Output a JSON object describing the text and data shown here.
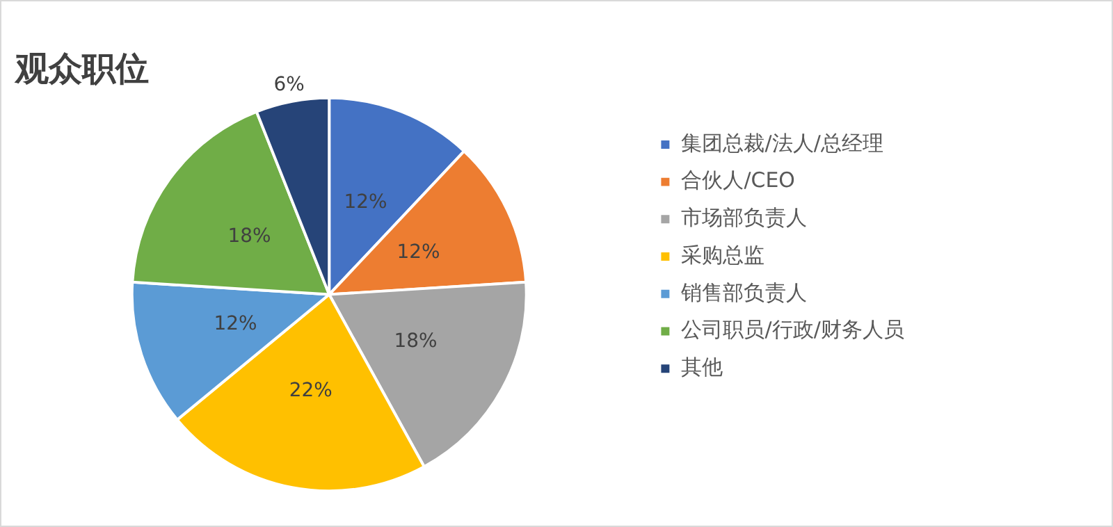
{
  "chart_data": {
    "type": "pie",
    "title": "观众职位",
    "categories": [
      "集团总裁/法人/总经理",
      "合伙人/CEO",
      "市场部负责人",
      "采购总监",
      "销售部负责人",
      "公司职员/行政/财务人员",
      "其他"
    ],
    "values": [
      12,
      12,
      18,
      22,
      12,
      18,
      6
    ],
    "colors": [
      "#4472c4",
      "#ed7d31",
      "#a5a5a5",
      "#ffc000",
      "#5b9bd5",
      "#70ad47",
      "#264478"
    ],
    "value_labels": [
      "12%",
      "12%",
      "18%",
      "22%",
      "12%",
      "18%",
      "6%"
    ],
    "legend": "right"
  }
}
